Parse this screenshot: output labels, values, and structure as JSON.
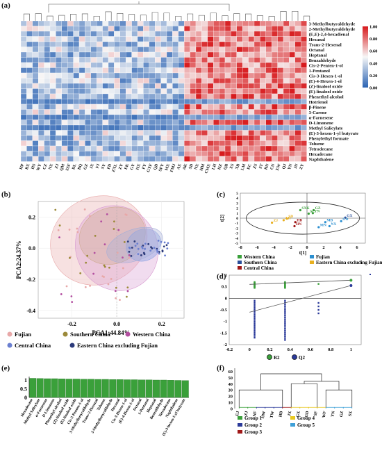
{
  "panel_labels": {
    "a": "(a)",
    "b": "(b)",
    "c": "(c)",
    "d": "(d)",
    "e": "(e)",
    "f": "(f)"
  },
  "heatmap": {
    "compounds": [
      "3-Methylbutyraldehyde",
      "2-Methylbutyraldehyde",
      "(E,E)-2,4-hexadienal",
      "Hexanal",
      "Trans-2-Hexenal",
      "Octanal",
      "Heptanal",
      "Benzaldehyde",
      "Cis-2-Penten-1-ol",
      "1-Pentanol",
      "Cis-3-Hexen-1-ol",
      "(E)-4-Hexen-1-ol",
      "(Z)-linalool oxide",
      "(E)-linalool oxide",
      "Phenethyl alcohol",
      "Hotrienol",
      "β-Pinene",
      "3-Carene",
      "α-Farnesene",
      "D-Limonene",
      "Methyl Salicylate",
      "(E)-3-hexen-1-yl butyrate",
      "Phenylethyl formate",
      "Toluene",
      "Tetradecane",
      "Hexadecane",
      "Naphthalene"
    ],
    "sample_labels_left": [
      "HP",
      "BX",
      "HS",
      "WY",
      "CZ",
      "NX",
      "ZJ",
      "QM",
      "SSF",
      "DL",
      "BQ",
      "GZ",
      "JX",
      "FJ",
      "SY",
      "FD",
      "ZXL",
      "ZY",
      "FK",
      "GY",
      "HX",
      "FY",
      "GYF",
      "QD",
      "SFY",
      "MX",
      "FMJ",
      "AX",
      "AK"
    ],
    "sample_labels_right": [
      "SD",
      "NX",
      "HM",
      "CMX",
      "LH",
      "HZ",
      "QB",
      "XS",
      "XB",
      "LM",
      "EC",
      "ZS",
      "ST",
      "RN",
      "CN",
      "XW",
      "QJ",
      "YN",
      "JN",
      "ZY"
    ],
    "colorbar": {
      "ticks": [
        "1.00",
        "0.80",
        "0.60",
        "0.40",
        "0.20",
        "0.00"
      ],
      "high_color": "#d7191c",
      "mid_color": "#f7f7f7",
      "low_color": "#2b63b3"
    }
  },
  "pca": {
    "xlabel": "PCA1:44.84%",
    "ylabel": "PCA2:24.37%",
    "xticks": [
      "-0.2",
      "0.0",
      "0.2"
    ],
    "yticks": [
      "0.2",
      "0.0",
      "-0.2",
      "-0.4"
    ],
    "legend": [
      {
        "label": "Fujian",
        "color": "#e8a8a8"
      },
      {
        "label": "Southern China",
        "color": "#9c8a3a"
      },
      {
        "label": "Western China",
        "color": "#b34fa0"
      },
      {
        "label": "Central China",
        "color": "#6a7fd0"
      },
      {
        "label": "Eastern China excluding Fujian",
        "color": "#2b3a7a"
      }
    ]
  },
  "pls": {
    "xlabel": "t[1]",
    "ylabel": "t[2]",
    "xticks": [
      "-8",
      "-6",
      "-4",
      "-2",
      "0",
      "2",
      "4",
      "6"
    ],
    "yticks": [
      "5",
      "4",
      "3",
      "2",
      "1",
      "0",
      "-1",
      "-2",
      "-3",
      "-4",
      "-5"
    ],
    "points": [
      {
        "label": "SXK",
        "color": "#3aa03a"
      },
      {
        "label": "GZ",
        "color": "#3aa03a"
      },
      {
        "label": "YN",
        "color": "#3aa03a"
      },
      {
        "label": "SC",
        "color": "#3aa03a"
      },
      {
        "label": "GX",
        "color": "#2b4f9a"
      },
      {
        "label": "GD",
        "color": "#2b8fd0"
      },
      {
        "label": "HN",
        "color": "#a01818"
      },
      {
        "label": "HB",
        "color": "#a01818"
      },
      {
        "label": "MN",
        "color": "#2b8fd0"
      },
      {
        "label": "NX",
        "color": "#2b8fd0"
      },
      {
        "label": "MB",
        "color": "#2b8fd0"
      },
      {
        "label": "SD",
        "color": "#e8b020"
      },
      {
        "label": "ZJ",
        "color": "#e8b020"
      },
      {
        "label": "AH",
        "color": "#e8b020"
      }
    ],
    "legend": [
      {
        "label": "Western China",
        "color": "#3aa03a"
      },
      {
        "label": "Fujian",
        "color": "#2b8fd0"
      },
      {
        "label": "Southern China",
        "color": "#2b4f9a"
      },
      {
        "label": "Eastern China excluding Fujian",
        "color": "#e8b020"
      },
      {
        "label": "Central China",
        "color": "#a01818"
      }
    ]
  },
  "permutation": {
    "xticks": [
      "-0.2",
      "0",
      "0.2",
      "0.4",
      "0.6",
      "0.8",
      "1"
    ],
    "yticks": [
      "1",
      "0.5",
      "0",
      "-0.5",
      "-1",
      "-1.5",
      "-2"
    ],
    "legend": [
      {
        "label": "R2",
        "color": "#3aa03a"
      },
      {
        "label": "Q2",
        "color": "#2b3a9a"
      }
    ]
  },
  "vip": {
    "yticks": [
      "1",
      "0.5",
      "0"
    ],
    "compounds": [
      "Hexadecane",
      "Methyl Salicylate",
      "α-Farnesene",
      "D-Limonene",
      "Phenethyl alcohol",
      "(Z)-linalool oxide",
      "(E)-linalool oxide",
      "Cis-2-Penten-1-ol",
      "3-Methylbutyraldehyde",
      "Trans-2-Hexenal",
      "Toluene",
      "2-Methylbutyraldehyde",
      "Hexanal",
      "Cis-3-Hexen-1-ol",
      "(E)-4-Hexen-1-ol",
      "Octanal",
      "1-Pentanol",
      "Heptanal",
      "Benzaldehyde",
      "Tetradecane",
      "Naphthalene",
      "(E)-3-hexen-1-yl butyrate"
    ],
    "bar_color": "#3aa03a"
  },
  "dendro": {
    "yticks": [
      "60",
      "50",
      "40",
      "30",
      "20",
      "10",
      "0"
    ],
    "leaves": [
      "EJ",
      "ZJ",
      "NF",
      "HW",
      "TW",
      "HB",
      "JX",
      "GX",
      "GD",
      "SF",
      "WF",
      "YN",
      "GZ",
      "SX"
    ],
    "legend": [
      {
        "label": "Group 1",
        "color": "#3aa03a"
      },
      {
        "label": "Group 2",
        "color": "#2b3a9a"
      },
      {
        "label": "Group 3",
        "color": "#a01818"
      },
      {
        "label": "Group 4",
        "color": "#e8c820"
      },
      {
        "label": "Group 5",
        "color": "#3fa0d8"
      }
    ]
  },
  "chart_data": [
    {
      "type": "heatmap",
      "title": "(a)",
      "rows": [
        "3-Methylbutyraldehyde",
        "2-Methylbutyraldehyde",
        "(E,E)-2,4-hexadienal",
        "Hexanal",
        "Trans-2-Hexenal",
        "Octanal",
        "Heptanal",
        "Benzaldehyde",
        "Cis-2-Penten-1-ol",
        "1-Pentanol",
        "Cis-3-Hexen-1-ol",
        "(E)-4-Hexen-1-ol",
        "(Z)-linalool oxide",
        "(E)-linalool oxide",
        "Phenethyl alcohol",
        "Hotrienol",
        "β-Pinene",
        "3-Carene",
        "α-Farnesene",
        "D-Limonene",
        "Methyl Salicylate",
        "(E)-3-hexen-1-yl butyrate",
        "Phenylethyl formate",
        "Toluene",
        "Tetradecane",
        "Hexadecane",
        "Naphthalene"
      ],
      "value_range": [
        0,
        1
      ]
    },
    {
      "type": "scatter",
      "title": "(b)",
      "xlabel": "PCA1:44.84%",
      "ylabel": "PCA2:24.37%",
      "xlim": [
        -0.35,
        0.3
      ],
      "ylim": [
        -0.45,
        0.3
      ]
    },
    {
      "type": "scatter",
      "title": "(c)",
      "xlabel": "t[1]",
      "ylabel": "t[2]",
      "xlim": [
        -8,
        7
      ],
      "ylim": [
        -5,
        5
      ],
      "series": [
        {
          "name": "Western China",
          "x": [
            -0.8,
            0.8,
            0.7,
            0.2
          ],
          "y": [
            1.6,
            1.6,
            1.0,
            0.9
          ]
        },
        {
          "name": "Southern China",
          "x": [
            4.6
          ],
          "y": [
            0.1
          ]
        },
        {
          "name": "Fujian",
          "x": [
            4.1,
            2.7,
            1.4,
            2.2
          ],
          "y": [
            -0.6,
            -1.6,
            -1.8,
            -0.8
          ]
        },
        {
          "name": "Eastern China excluding Fujian",
          "x": [
            -2.4,
            -4.2,
            -2.8
          ],
          "y": [
            -0.1,
            -0.9,
            -0.4
          ]
        },
        {
          "name": "Central China",
          "x": [
            -1.5,
            -1.4
          ],
          "y": [
            -1.6,
            -0.8
          ]
        }
      ]
    },
    {
      "type": "scatter",
      "title": "(d)",
      "xlim": [
        -0.2,
        1.1
      ],
      "ylim": [
        -2,
        1
      ],
      "series": [
        {
          "name": "R2",
          "x": [
            0.05,
            0.35,
            0.68,
            1.0
          ],
          "y": [
            0.6,
            0.65,
            0.62,
            0.78
          ]
        },
        {
          "name": "Q2",
          "x": [
            0.05,
            0.35,
            0.68,
            1.0
          ],
          "y": [
            -1.5,
            -1.6,
            -0.5,
            0.55
          ]
        }
      ]
    },
    {
      "type": "bar",
      "title": "(e)",
      "categories": [
        "Hexadecane",
        "Methyl Salicylate",
        "α-Farnesene",
        "D-Limonene",
        "Phenethyl alcohol",
        "(Z)-linalool oxide",
        "(E)-linalool oxide",
        "Cis-2-Penten-1-ol",
        "3-Methylbutyraldehyde",
        "Trans-2-Hexenal",
        "Toluene",
        "2-Methylbutyraldehyde",
        "Hexanal",
        "Cis-3-Hexen-1-ol",
        "(E)-4-Hexen-1-ol",
        "Octanal",
        "1-Pentanol",
        "Heptanal",
        "Benzaldehyde",
        "Tetradecane",
        "Naphthalene",
        "(E)-3-hexen-1-yl butyrate"
      ],
      "values": [
        1.1,
        1.09,
        1.08,
        1.08,
        1.07,
        1.06,
        1.06,
        1.05,
        1.05,
        1.04,
        1.04,
        1.03,
        1.03,
        1.02,
        1.02,
        1.01,
        1.01,
        1.0,
        1.0,
        0.99,
        0.98,
        0.97
      ],
      "ylim": [
        0,
        1.2
      ]
    },
    {
      "type": "dendrogram",
      "title": "(f)",
      "leaves": [
        "EJ",
        "ZJ",
        "NF",
        "HW",
        "TW",
        "HB",
        "JX",
        "GX",
        "GD",
        "SF",
        "WF",
        "YN",
        "GZ",
        "SX"
      ],
      "ylim": [
        0,
        65
      ]
    }
  ]
}
